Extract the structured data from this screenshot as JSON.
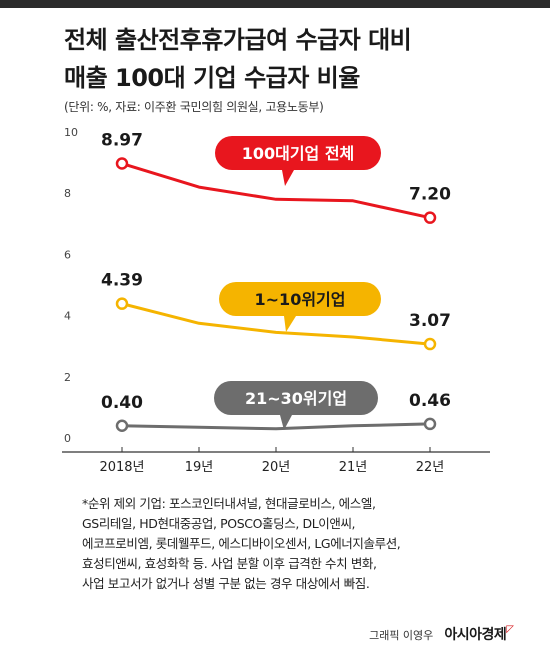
{
  "header": {
    "title_line1": "전체 출산전후휴가급여 수급자 대비",
    "title_line2": "매출 100대 기업 수급자 비율",
    "source": "(단위: %, 자료: 이주환 국민의힘 의원실, 고용노동부)"
  },
  "chart_data": {
    "type": "line",
    "x": [
      "2018년",
      "19년",
      "20년",
      "21년",
      "22년"
    ],
    "ylim": [
      0,
      10
    ],
    "yticks": [
      0,
      2,
      4,
      6,
      8,
      10
    ],
    "grid": false,
    "series": [
      {
        "name": "100대기업 전체",
        "values": [
          8.97,
          8.2,
          7.8,
          7.75,
          7.2
        ],
        "color": "#e8161e",
        "labels": [
          "8.97",
          "",
          "",
          "",
          "7.20"
        ]
      },
      {
        "name": "1~10위기업",
        "values": [
          4.39,
          3.75,
          3.45,
          3.3,
          3.07
        ],
        "color": "#f5b400",
        "labels": [
          "4.39",
          "",
          "",
          "",
          "3.07"
        ]
      },
      {
        "name": "21~30위기업",
        "values": [
          0.4,
          0.35,
          0.3,
          0.4,
          0.46
        ],
        "color": "#6d6d6d",
        "labels": [
          "0.40",
          "",
          "",
          "",
          "0.46"
        ]
      }
    ]
  },
  "footnote": {
    "lines": [
      "*순위 제외 기업: 포스코인터내셔널, 현대글로비스, 에스엘,",
      "GS리테일, HD현대중공업, POSCO홀딩스, DL이앤씨,",
      "에코프로비엠, 롯데웰푸드, 에스디바이오센서, LG에너지솔루션,",
      "효성티앤씨, 효성화학 등. 사업 분할 이후 급격한 수치 변화,",
      "사업 보고서가 없거나 성별 구분 없는 경우 대상에서 빠짐."
    ]
  },
  "credit": {
    "author": "그래픽 이영우",
    "logo": "아시아경제"
  }
}
